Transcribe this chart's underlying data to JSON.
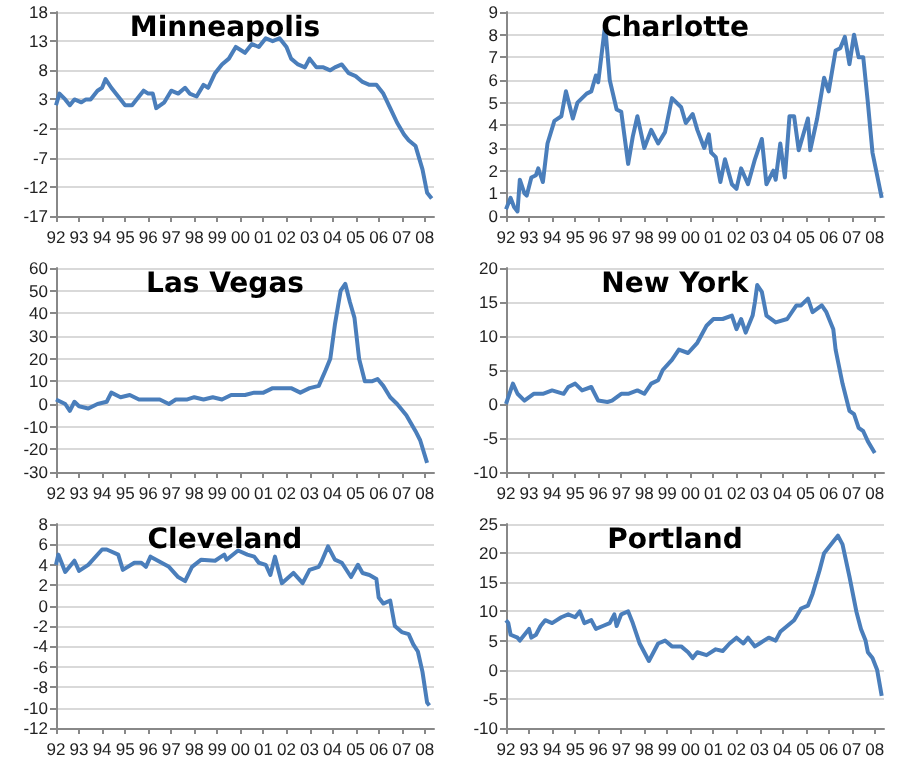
{
  "chart_data": [
    {
      "type": "line",
      "title": "Minneapolis",
      "color": "#4a7ebb",
      "grid": "y",
      "xlim": [
        1992,
        2008.4
      ],
      "ylim": [
        -17,
        18
      ],
      "yticks": [
        -17,
        -12,
        -7,
        -2,
        3,
        8,
        13,
        18
      ],
      "xticks": [
        {
          "value": 1992,
          "label": "92"
        },
        {
          "value": 1993,
          "label": "93"
        },
        {
          "value": 1994,
          "label": "94"
        },
        {
          "value": 1995,
          "label": "95"
        },
        {
          "value": 1996,
          "label": "96"
        },
        {
          "value": 1997,
          "label": "97"
        },
        {
          "value": 1998,
          "label": "98"
        },
        {
          "value": 1999,
          "label": "99"
        },
        {
          "value": 2000,
          "label": "00"
        },
        {
          "value": 2001,
          "label": "01"
        },
        {
          "value": 2002,
          "label": "02"
        },
        {
          "value": 2003,
          "label": "03"
        },
        {
          "value": 2004,
          "label": "04"
        },
        {
          "value": 2005,
          "label": "05"
        },
        {
          "value": 2006,
          "label": "06"
        },
        {
          "value": 2007,
          "label": "07"
        },
        {
          "value": 2008,
          "label": "08"
        }
      ],
      "x": [
        1992.0,
        1992.15,
        1992.4,
        1992.6,
        1992.8,
        1993.1,
        1993.3,
        1993.5,
        1993.8,
        1994.0,
        1994.15,
        1994.4,
        1994.7,
        1995.0,
        1995.3,
        1995.6,
        1995.8,
        1996.0,
        1996.2,
        1996.35,
        1996.7,
        1997.0,
        1997.3,
        1997.6,
        1997.8,
        1998.1,
        1998.4,
        1998.6,
        1998.9,
        1999.2,
        1999.5,
        1999.8,
        2000.2,
        2000.5,
        2000.8,
        2001.1,
        2001.4,
        2001.7,
        2002.0,
        2002.2,
        2002.5,
        2002.8,
        2003.0,
        2003.3,
        2003.6,
        2003.9,
        2004.1,
        2004.4,
        2004.7,
        2005.0,
        2005.3,
        2005.6,
        2005.9,
        2006.2,
        2006.5,
        2006.8,
        2007.1,
        2007.3,
        2007.6,
        2007.9,
        2008.1,
        2008.3
      ],
      "values": [
        2,
        4,
        3,
        2,
        3,
        2.5,
        3,
        3,
        4.5,
        5,
        6.5,
        5,
        3.5,
        2,
        2,
        3.5,
        4.5,
        4,
        4,
        1.5,
        2.5,
        4.5,
        4,
        5,
        4,
        3.5,
        5.5,
        5,
        7.5,
        9,
        10,
        12,
        11,
        12.5,
        12,
        13.5,
        13,
        13.5,
        12,
        10,
        9,
        8.5,
        10,
        8.5,
        8.5,
        8,
        8.5,
        9,
        7.5,
        7,
        6,
        5.5,
        5.5,
        4,
        1.5,
        -1,
        -3,
        -4,
        -5,
        -9,
        -13,
        -14
      ]
    },
    {
      "type": "line",
      "title": "Charlotte",
      "color": "#4a7ebb",
      "grid": "y",
      "xlim": [
        1992,
        2008.4
      ],
      "ylim": [
        0,
        9
      ],
      "yticks": [
        0,
        1,
        2,
        3,
        4,
        5,
        6,
        7,
        8,
        9
      ],
      "xticks": [
        {
          "value": 1992,
          "label": "92"
        },
        {
          "value": 1993,
          "label": "93"
        },
        {
          "value": 1994,
          "label": "94"
        },
        {
          "value": 1995,
          "label": "95"
        },
        {
          "value": 1996,
          "label": "96"
        },
        {
          "value": 1997,
          "label": "97"
        },
        {
          "value": 1998,
          "label": "98"
        },
        {
          "value": 1999,
          "label": "99"
        },
        {
          "value": 2000,
          "label": "00"
        },
        {
          "value": 2001,
          "label": "01"
        },
        {
          "value": 2002,
          "label": "02"
        },
        {
          "value": 2003,
          "label": "03"
        },
        {
          "value": 2004,
          "label": "04"
        },
        {
          "value": 2005,
          "label": "05"
        },
        {
          "value": 2006,
          "label": "06"
        },
        {
          "value": 2007,
          "label": "07"
        },
        {
          "value": 2008,
          "label": "08"
        }
      ],
      "x": [
        1992.0,
        1992.2,
        1992.35,
        1992.5,
        1992.6,
        1992.8,
        1992.9,
        1993.1,
        1993.3,
        1993.4,
        1993.6,
        1993.8,
        1994.1,
        1994.4,
        1994.6,
        1994.9,
        1995.1,
        1995.5,
        1995.7,
        1995.9,
        1996.0,
        1996.3,
        1996.5,
        1996.8,
        1997.0,
        1997.3,
        1997.5,
        1997.7,
        1998.0,
        1998.3,
        1998.6,
        1998.9,
        1999.2,
        1999.6,
        1999.8,
        2000.1,
        2000.3,
        2000.6,
        2000.8,
        2000.9,
        2001.1,
        2001.3,
        2001.5,
        2001.8,
        2002.0,
        2002.2,
        2002.5,
        2002.8,
        2003.1,
        2003.3,
        2003.6,
        2003.7,
        2003.9,
        2004.1,
        2004.3,
        2004.5,
        2004.7,
        2005.1,
        2005.2,
        2005.5,
        2005.8,
        2006.0,
        2006.3,
        2006.5,
        2006.7,
        2006.9,
        2007.1,
        2007.3,
        2007.5,
        2007.7,
        2007.9,
        2008.1,
        2008.3
      ],
      "values": [
        0.3,
        0.8,
        0.4,
        0.2,
        1.6,
        1,
        0.9,
        1.7,
        1.8,
        2.1,
        1.5,
        3.2,
        4.2,
        4.4,
        5.5,
        4.3,
        5,
        5.4,
        5.5,
        6.2,
        5.9,
        8.4,
        6,
        4.7,
        4.6,
        2.3,
        3.5,
        4.4,
        3,
        3.8,
        3.2,
        3.7,
        5.2,
        4.8,
        4.1,
        4.5,
        3.8,
        3,
        3.6,
        2.8,
        2.6,
        1.5,
        2.5,
        1.4,
        1.2,
        2.1,
        1.4,
        2.5,
        3.4,
        1.4,
        2,
        1.6,
        3.2,
        1.7,
        4.4,
        4.4,
        2.9,
        4.3,
        2.9,
        4.3,
        6.1,
        5.5,
        7.3,
        7.4,
        7.9,
        6.7,
        8,
        7,
        7,
        5,
        2.8,
        1.8,
        0.8
      ]
    },
    {
      "type": "line",
      "title": "Las Vegas",
      "color": "#4a7ebb",
      "grid": "y",
      "xlim": [
        1992,
        2008.4
      ],
      "ylim": [
        -30,
        60
      ],
      "yticks": [
        -30,
        -20,
        -10,
        0,
        10,
        20,
        30,
        40,
        50,
        60
      ],
      "xticks": [
        {
          "value": 1992,
          "label": "92"
        },
        {
          "value": 1993,
          "label": "93"
        },
        {
          "value": 1994,
          "label": "94"
        },
        {
          "value": 1995,
          "label": "95"
        },
        {
          "value": 1996,
          "label": "96"
        },
        {
          "value": 1997,
          "label": "97"
        },
        {
          "value": 1998,
          "label": "98"
        },
        {
          "value": 1999,
          "label": "99"
        },
        {
          "value": 2000,
          "label": "00"
        },
        {
          "value": 2001,
          "label": "01"
        },
        {
          "value": 2002,
          "label": "02"
        },
        {
          "value": 2003,
          "label": "03"
        },
        {
          "value": 2004,
          "label": "04"
        },
        {
          "value": 2005,
          "label": "05"
        },
        {
          "value": 2006,
          "label": "06"
        },
        {
          "value": 2007,
          "label": "07"
        },
        {
          "value": 2008,
          "label": "08"
        }
      ],
      "x": [
        1992.0,
        1992.4,
        1992.6,
        1992.8,
        1993.0,
        1993.4,
        1993.8,
        1994.2,
        1994.4,
        1994.8,
        1995.2,
        1995.6,
        1996.0,
        1996.5,
        1996.9,
        1997.2,
        1997.7,
        1998.0,
        1998.4,
        1998.8,
        1999.2,
        1999.6,
        2000.2,
        2000.6,
        2001.0,
        2001.4,
        2001.8,
        2002.2,
        2002.6,
        2003.0,
        2003.4,
        2003.7,
        2003.9,
        2004.1,
        2004.35,
        2004.55,
        2004.75,
        2004.95,
        2005.15,
        2005.4,
        2005.7,
        2005.95,
        2006.2,
        2006.5,
        2006.8,
        2007.2,
        2007.6,
        2007.8,
        2008.1
      ],
      "values": [
        2,
        0,
        -3,
        1,
        -1,
        -2,
        0,
        1,
        5,
        3,
        4,
        2,
        2,
        2,
        0,
        2,
        2,
        3,
        2,
        3,
        2,
        4,
        4,
        5,
        5,
        7,
        7,
        7,
        5,
        7,
        8,
        15,
        20,
        35,
        50,
        53,
        45,
        38,
        20,
        10,
        10,
        11,
        8,
        3,
        0,
        -5,
        -12,
        -16,
        -26
      ]
    },
    {
      "type": "line",
      "title": "New York",
      "color": "#4a7ebb",
      "grid": "y",
      "xlim": [
        1992,
        2008.4
      ],
      "ylim": [
        -10,
        20
      ],
      "yticks": [
        -10,
        -5,
        0,
        5,
        10,
        15,
        20
      ],
      "xticks": [
        {
          "value": 1992,
          "label": "92"
        },
        {
          "value": 1993,
          "label": "93"
        },
        {
          "value": 1994,
          "label": "94"
        },
        {
          "value": 1995,
          "label": "95"
        },
        {
          "value": 1996,
          "label": "96"
        },
        {
          "value": 1997,
          "label": "97"
        },
        {
          "value": 1998,
          "label": "98"
        },
        {
          "value": 1999,
          "label": "99"
        },
        {
          "value": 2000,
          "label": "00"
        },
        {
          "value": 2001,
          "label": "01"
        },
        {
          "value": 2002,
          "label": "02"
        },
        {
          "value": 2003,
          "label": "03"
        },
        {
          "value": 2004,
          "label": "04"
        },
        {
          "value": 2005,
          "label": "05"
        },
        {
          "value": 2006,
          "label": "06"
        },
        {
          "value": 2007,
          "label": "07"
        },
        {
          "value": 2008,
          "label": "08"
        }
      ],
      "x": [
        1992.0,
        1992.3,
        1992.5,
        1992.8,
        1993.2,
        1993.6,
        1994.0,
        1994.5,
        1994.7,
        1995.0,
        1995.3,
        1995.7,
        1996.0,
        1996.4,
        1996.6,
        1997.0,
        1997.3,
        1997.7,
        1998.0,
        1998.3,
        1998.6,
        1998.8,
        1999.2,
        1999.5,
        1999.9,
        2000.3,
        2000.7,
        2001.0,
        2001.4,
        2001.8,
        2002.0,
        2002.2,
        2002.4,
        2002.7,
        2002.8,
        2002.9,
        2003.1,
        2003.3,
        2003.7,
        2004.2,
        2004.6,
        2004.8,
        2005.1,
        2005.3,
        2005.7,
        2005.9,
        2006.2,
        2006.3,
        2006.6,
        2006.9,
        2007.1,
        2007.3,
        2007.5,
        2007.7,
        2008.0
      ],
      "values": [
        0,
        3,
        1.5,
        0.5,
        1.5,
        1.5,
        2,
        1.5,
        2.5,
        3,
        2,
        2.5,
        0.5,
        0.3,
        0.5,
        1.5,
        1.5,
        2,
        1.5,
        3,
        3.5,
        5,
        6.5,
        8,
        7.5,
        9,
        11.5,
        12.5,
        12.5,
        13,
        11,
        12.5,
        10.5,
        13,
        15,
        17.5,
        16.5,
        13,
        12,
        12.5,
        14.5,
        14.5,
        15.5,
        13.5,
        14.5,
        13.5,
        11,
        8,
        3,
        -1,
        -1.5,
        -3.5,
        -4,
        -5.5,
        -7.2
      ]
    },
    {
      "type": "line",
      "title": "Cleveland",
      "color": "#4a7ebb",
      "grid": "y",
      "xlim": [
        1992,
        2008.4
      ],
      "ylim": [
        -12,
        8
      ],
      "yticks": [
        -12,
        -10,
        -8,
        -6,
        -4,
        -2,
        0,
        2,
        4,
        6,
        8
      ],
      "xticks": [
        {
          "value": 1992,
          "label": "92"
        },
        {
          "value": 1993,
          "label": "93"
        },
        {
          "value": 1994,
          "label": "94"
        },
        {
          "value": 1995,
          "label": "95"
        },
        {
          "value": 1996,
          "label": "96"
        },
        {
          "value": 1997,
          "label": "97"
        },
        {
          "value": 1998,
          "label": "98"
        },
        {
          "value": 1999,
          "label": "99"
        },
        {
          "value": 2000,
          "label": "00"
        },
        {
          "value": 2001,
          "label": "01"
        },
        {
          "value": 2002,
          "label": "02"
        },
        {
          "value": 2003,
          "label": "03"
        },
        {
          "value": 2004,
          "label": "04"
        },
        {
          "value": 2005,
          "label": "05"
        },
        {
          "value": 2006,
          "label": "06"
        },
        {
          "value": 2007,
          "label": "07"
        },
        {
          "value": 2008,
          "label": "08"
        }
      ],
      "x": [
        1992.0,
        1992.1,
        1992.4,
        1992.8,
        1993.0,
        1993.4,
        1994.0,
        1994.2,
        1994.7,
        1994.9,
        1995.4,
        1995.7,
        1995.9,
        1996.1,
        1996.5,
        1996.9,
        1997.3,
        1997.6,
        1997.9,
        1998.3,
        1998.9,
        1999.3,
        1999.4,
        1999.9,
        2000.3,
        2000.6,
        2000.8,
        2001.1,
        2001.3,
        2001.5,
        2001.8,
        2002.3,
        2002.7,
        2003.0,
        2003.4,
        2003.5,
        2003.8,
        2004.1,
        2004.4,
        2004.8,
        2005.1,
        2005.3,
        2005.6,
        2005.9,
        2006.0,
        2006.2,
        2006.5,
        2006.7,
        2007.0,
        2007.3,
        2007.5,
        2007.7,
        2007.9,
        2008.1,
        2008.2
      ],
      "values": [
        4,
        5,
        3.3,
        4.4,
        3.4,
        4,
        5.5,
        5.5,
        5,
        3.5,
        4.2,
        4.2,
        3.8,
        4.8,
        4.3,
        3.8,
        2.8,
        2.4,
        3.8,
        4.5,
        4.4,
        5,
        4.5,
        5.4,
        5,
        4.8,
        4.2,
        4,
        3,
        4.8,
        2.2,
        3.2,
        2.2,
        3.5,
        3.8,
        4.2,
        5.8,
        4.5,
        4.2,
        2.8,
        4,
        3.2,
        3,
        2.6,
        0.8,
        0.2,
        0.5,
        -2,
        -2.6,
        -2.8,
        -3.8,
        -4.5,
        -6.5,
        -9.5,
        -9.8
      ]
    },
    {
      "type": "line",
      "title": "Portland",
      "color": "#4a7ebb",
      "grid": "y",
      "xlim": [
        1992,
        2008.4
      ],
      "ylim": [
        -10,
        25
      ],
      "yticks": [
        -10,
        -5,
        0,
        5,
        10,
        15,
        20,
        25
      ],
      "xticks": [
        {
          "value": 1992,
          "label": "92"
        },
        {
          "value": 1993,
          "label": "93"
        },
        {
          "value": 1994,
          "label": "94"
        },
        {
          "value": 1995,
          "label": "95"
        },
        {
          "value": 1996,
          "label": "96"
        },
        {
          "value": 1997,
          "label": "97"
        },
        {
          "value": 1998,
          "label": "98"
        },
        {
          "value": 1999,
          "label": "99"
        },
        {
          "value": 2000,
          "label": "00"
        },
        {
          "value": 2001,
          "label": "01"
        },
        {
          "value": 2002,
          "label": "02"
        },
        {
          "value": 2003,
          "label": "03"
        },
        {
          "value": 2004,
          "label": "04"
        },
        {
          "value": 2005,
          "label": "05"
        },
        {
          "value": 2006,
          "label": "06"
        },
        {
          "value": 2007,
          "label": "07"
        },
        {
          "value": 2008,
          "label": "08"
        }
      ],
      "x": [
        1992.0,
        1992.1,
        1992.2,
        1992.5,
        1992.6,
        1992.8,
        1993.0,
        1993.1,
        1993.3,
        1993.5,
        1993.7,
        1994.0,
        1994.4,
        1994.7,
        1995.0,
        1995.2,
        1995.4,
        1995.7,
        1995.9,
        1996.2,
        1996.5,
        1996.7,
        1996.8,
        1997.0,
        1997.3,
        1997.5,
        1997.8,
        1998.0,
        1998.2,
        1998.4,
        1998.6,
        1998.9,
        1999.2,
        1999.6,
        1999.9,
        2000.1,
        2000.3,
        2000.7,
        2001.1,
        2001.4,
        2001.7,
        2002.0,
        2002.3,
        2002.5,
        2002.8,
        2003.0,
        2003.4,
        2003.7,
        2003.9,
        2004.2,
        2004.5,
        2004.8,
        2005.1,
        2005.3,
        2005.6,
        2005.8,
        2006.2,
        2006.4,
        2006.6,
        2006.9,
        2007.2,
        2007.4,
        2007.6,
        2007.7,
        2007.9,
        2008.1,
        2008.3
      ],
      "values": [
        8.5,
        8,
        6,
        5.5,
        5,
        6,
        7,
        5.5,
        6,
        7.5,
        8.5,
        8,
        9,
        9.5,
        9,
        10,
        8,
        8.5,
        7,
        7.5,
        8,
        9.5,
        7.5,
        9.5,
        10,
        8,
        4.5,
        3,
        1.5,
        3,
        4.5,
        5,
        4,
        4,
        3,
        2,
        3,
        2.5,
        3.5,
        3.2,
        4.5,
        5.5,
        4.5,
        5.5,
        4,
        4.5,
        5.5,
        5,
        6.5,
        7.5,
        8.5,
        10.5,
        11,
        13,
        17,
        20,
        22,
        23,
        21.5,
        16,
        10,
        7,
        5,
        3,
        2,
        0,
        -4.5
      ]
    }
  ]
}
